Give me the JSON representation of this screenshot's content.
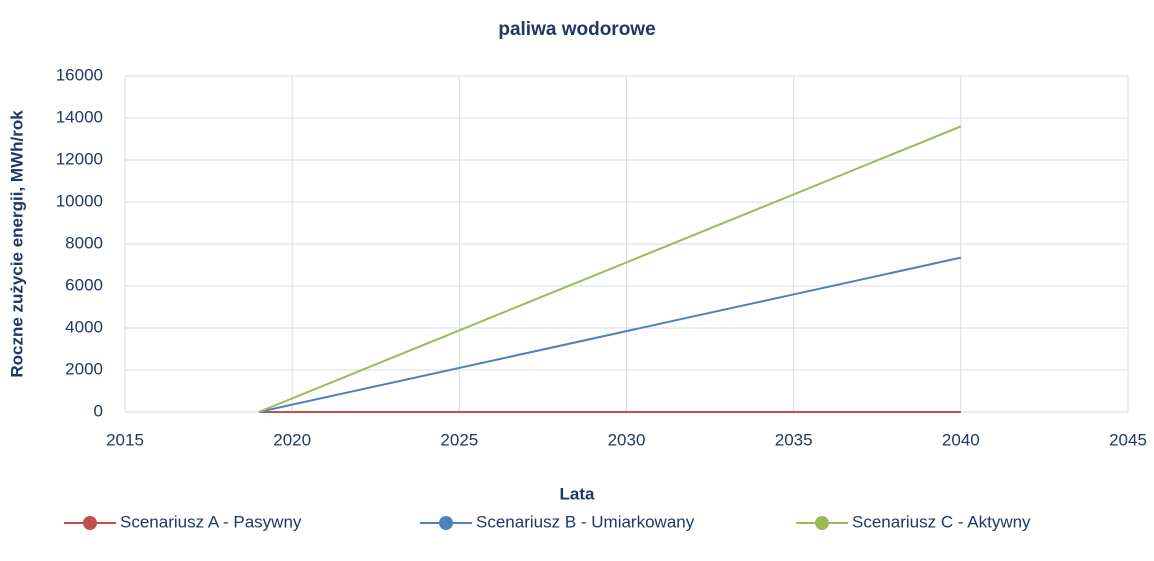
{
  "chart_data": {
    "type": "line",
    "title": "paliwa wodorowe",
    "x_label": "Lata",
    "y_label": "Roczne zużycie energii, MWh/rok",
    "x": [
      2019,
      2040
    ],
    "series": [
      {
        "name": "Scenariusz A - Pasywny",
        "color": "#c0504d",
        "values": [
          0,
          0
        ]
      },
      {
        "name": "Scenariusz B - Umiarkowany",
        "color": "#4f81bd",
        "values": [
          0,
          7350
        ]
      },
      {
        "name": "Scenariusz C - Aktywny",
        "color": "#9bbb59",
        "values": [
          0,
          13600
        ]
      }
    ],
    "xlim": [
      2015,
      2045
    ],
    "xticks": [
      2015,
      2020,
      2025,
      2030,
      2035,
      2040,
      2045
    ],
    "ylim": [
      0,
      16000
    ],
    "yticks": [
      0,
      2000,
      4000,
      6000,
      8000,
      10000,
      12000,
      14000,
      16000
    ],
    "grid": true,
    "legend": "bottom"
  }
}
